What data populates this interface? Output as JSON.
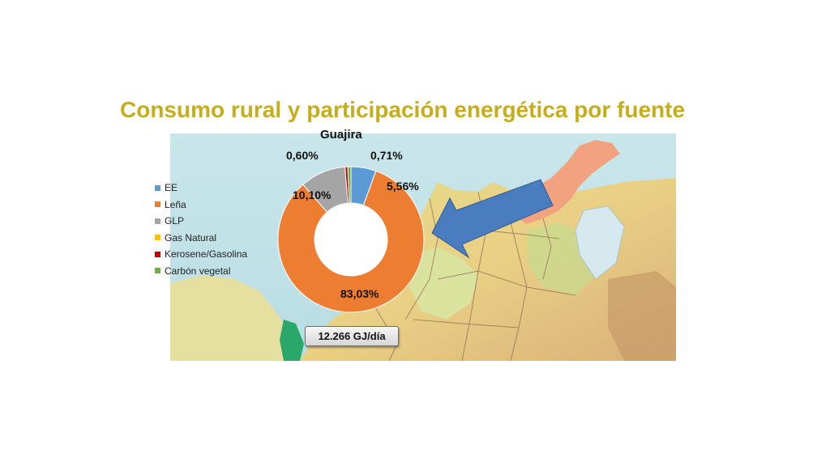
{
  "slide": {
    "title": "Consumo rural y participación energética por fuente",
    "callout_text": "12.266 GJ/día",
    "arrow_color": "#4a7cc0"
  },
  "map": {
    "highlight_region_color": "#f2a27e"
  },
  "chart_data": {
    "type": "pie",
    "donut": true,
    "title": "Guajira",
    "legend_position": "left",
    "categories": [
      "EE",
      "Leña",
      "GLP",
      "Gas Natural",
      "Kerosene/Gasolina",
      "Carbón vegetal"
    ],
    "values": [
      5.56,
      83.03,
      10.1,
      0.0,
      0.6,
      0.71
    ],
    "colors": [
      "#5b9bd5",
      "#ed7d31",
      "#a5a5a5",
      "#ffc000",
      "#c00000",
      "#70ad47"
    ],
    "data_labels": [
      "5,56%",
      "83,03%",
      "10,10%",
      "",
      "0,60%",
      "0,71%"
    ]
  }
}
